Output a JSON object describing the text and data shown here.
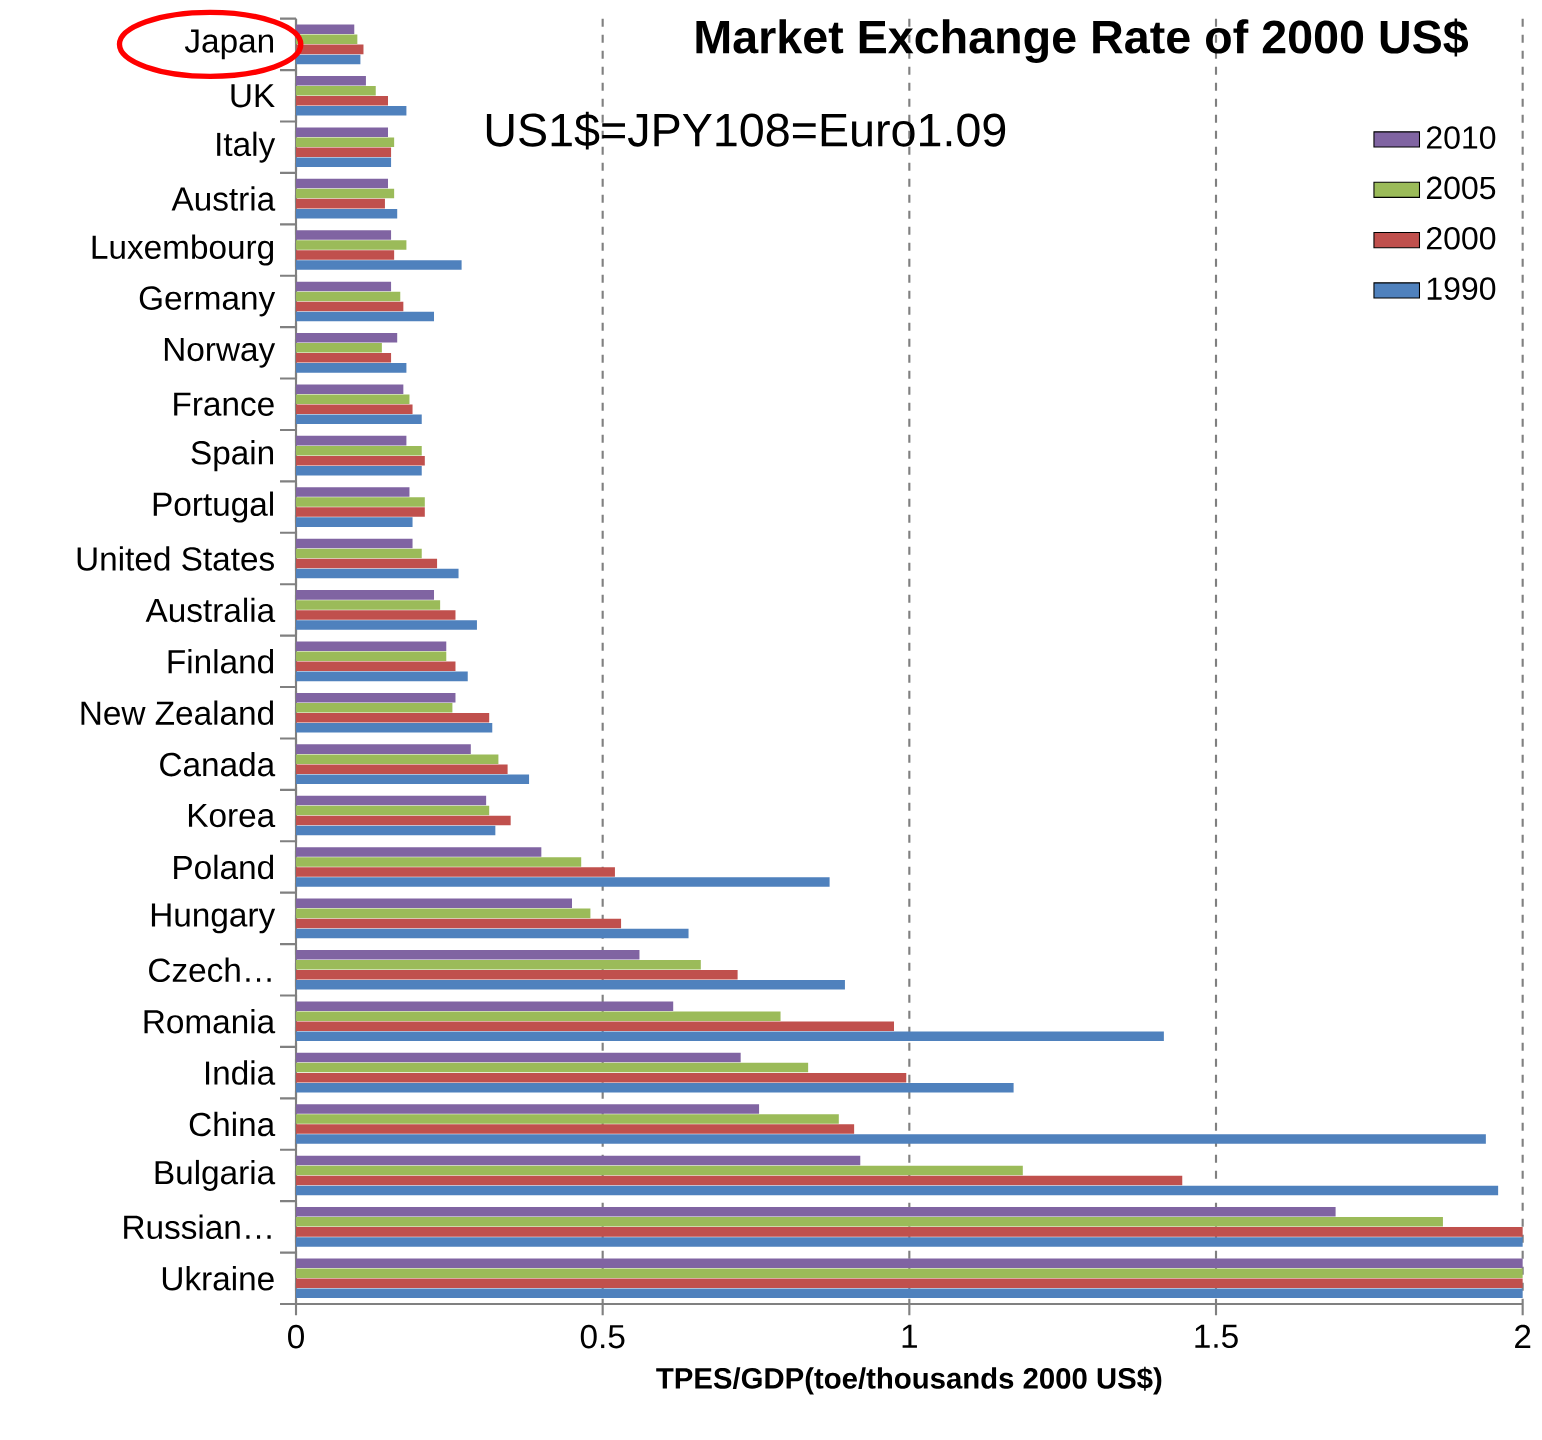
{
  "chart_data": {
    "type": "bar",
    "orientation": "horizontal",
    "title": "Market Exchange Rate of 2000 US$",
    "subtitle": "US1$=JPY108=Euro1.09",
    "xlabel": "TPES/GDP(toe/thousands  2000 US$)",
    "categories": [
      "Japan",
      "UK",
      "Italy",
      "Austria",
      "Luxembourg",
      "Germany",
      "Norway",
      "France",
      "Spain",
      "Portugal",
      "United States",
      "Australia",
      "Finland",
      "New Zealand",
      "Canada",
      "Korea",
      "Poland",
      "Hungary",
      "Czech…",
      "Romania",
      "India",
      "China",
      "Bulgaria",
      "Russian…",
      "Ukraine"
    ],
    "series": [
      {
        "name": "2010",
        "color": "#8064a2",
        "values": [
          0.095,
          0.114,
          0.15,
          0.15,
          0.155,
          0.155,
          0.165,
          0.175,
          0.18,
          0.185,
          0.19,
          0.225,
          0.245,
          0.26,
          0.285,
          0.31,
          0.4,
          0.45,
          0.56,
          0.615,
          0.725,
          0.755,
          0.92,
          1.695,
          2
        ]
      },
      {
        "name": "2005",
        "color": "#9bbb59",
        "values": [
          0.1,
          0.13,
          0.16,
          0.16,
          0.18,
          0.17,
          0.14,
          0.185,
          0.205,
          0.21,
          0.205,
          0.235,
          0.245,
          0.255,
          0.33,
          0.315,
          0.465,
          0.48,
          0.66,
          0.79,
          0.835,
          0.885,
          1.185,
          1.87,
          2
        ]
      },
      {
        "name": "2000",
        "color": "#c0504d",
        "values": [
          0.11,
          0.15,
          0.155,
          0.145,
          0.16,
          0.175,
          0.155,
          0.19,
          0.21,
          0.21,
          0.23,
          0.26,
          0.26,
          0.315,
          0.345,
          0.35,
          0.52,
          0.53,
          0.72,
          0.975,
          0.995,
          0.91,
          1.445,
          2,
          2
        ]
      },
      {
        "name": "1990",
        "color": "#4f81bd",
        "values": [
          0.105,
          0.18,
          0.155,
          0.165,
          0.27,
          0.225,
          0.18,
          0.205,
          0.205,
          0.19,
          0.265,
          0.295,
          0.28,
          0.32,
          0.38,
          0.325,
          0.87,
          0.64,
          0.895,
          1.415,
          1.17,
          1.94,
          1.96,
          2,
          2
        ]
      }
    ],
    "xlim": [
      0,
      2
    ],
    "xticks": [
      0,
      0.5,
      1,
      1.5,
      2
    ],
    "grid": "x",
    "legend": "top right"
  }
}
